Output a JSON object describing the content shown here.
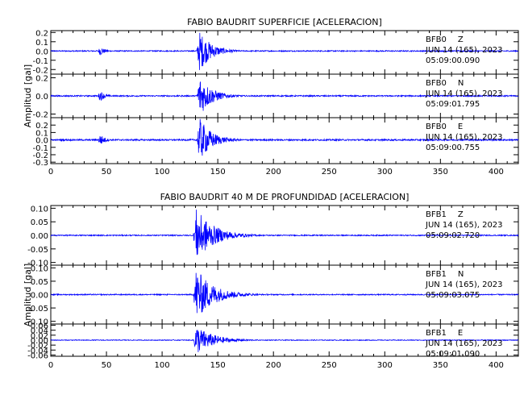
{
  "colors": {
    "trace": "#0000ff",
    "axis": "#000000",
    "background": "#ffffff"
  },
  "chart_data": [
    {
      "type": "line",
      "title": "FABIO BAUDRIT SUPERFICIE [ACELERACION]",
      "ylabel": "Amplitud [gal]",
      "xlabel": "",
      "xlim": [
        0,
        420
      ],
      "x_ticks": [
        0,
        50,
        100,
        150,
        200,
        250,
        300,
        350,
        400
      ],
      "grid": false,
      "traces": [
        {
          "station": "BFB0",
          "component": "Z",
          "date": "JUN 14 (165), 2023",
          "time": "05:09:00.090",
          "ylim": [
            -0.25,
            0.22
          ],
          "y_ticks": [
            0.2,
            0.1,
            0.0,
            -0.1,
            -0.2
          ],
          "y_tick_labels": [
            "0.2",
            "0.1",
            "0.0",
            "-0.1",
            "-0.2"
          ],
          "noise": 0.006,
          "events": [
            {
              "t0": 42,
              "t1": 60,
              "peak": 0.05
            },
            {
              "t0": 131,
              "t1": 175,
              "peak": 0.22
            }
          ]
        },
        {
          "station": "BFB0",
          "component": "N",
          "date": "JUN 14 (165), 2023",
          "time": "05:09:01.795",
          "ylim": [
            -0.24,
            0.24
          ],
          "y_ticks": [
            0.2,
            0.0,
            -0.2
          ],
          "y_tick_labels": [
            "0.2",
            "0.0",
            "-0.2"
          ],
          "noise": 0.007,
          "events": [
            {
              "t0": 42,
              "t1": 60,
              "peak": 0.06
            },
            {
              "t0": 131,
              "t1": 175,
              "peak": 0.23
            }
          ]
        },
        {
          "station": "BFB0",
          "component": "E",
          "date": "JUN 14 (165), 2023",
          "time": "05:09:00.755",
          "ylim": [
            -0.32,
            0.3
          ],
          "y_ticks": [
            0.2,
            0.1,
            0.0,
            -0.1,
            -0.2,
            -0.3
          ],
          "y_tick_labels": [
            "0.2",
            "0.1",
            "0.0",
            "-0.1",
            "-0.2",
            "-0.3"
          ],
          "noise": 0.01,
          "events": [
            {
              "t0": 42,
              "t1": 60,
              "peak": 0.08
            },
            {
              "t0": 131,
              "t1": 175,
              "peak": 0.3
            }
          ]
        }
      ]
    },
    {
      "type": "line",
      "title": "FABIO BAUDRIT 40 M DE PROFUNDIDAD [ACELERACION]",
      "ylabel": "Amplitud [gal]",
      "xlabel": "",
      "xlim": [
        0,
        420
      ],
      "x_ticks": [
        0,
        50,
        100,
        150,
        200,
        250,
        300,
        350,
        400
      ],
      "grid": false,
      "traces": [
        {
          "station": "BFB1",
          "component": "Z",
          "date": "JUN 14 (165), 2023",
          "time": "05:09:02.720",
          "ylim": [
            -0.11,
            0.11
          ],
          "y_ticks": [
            0.1,
            0.05,
            0.0,
            -0.05,
            -0.1
          ],
          "y_tick_labels": [
            "0.10",
            "0.05",
            "0.00",
            "-0.05",
            "-0.10"
          ],
          "noise": 0.002,
          "events": [
            {
              "t0": 128,
              "t1": 190,
              "peak": 0.1
            }
          ]
        },
        {
          "station": "BFB1",
          "component": "N",
          "date": "JUN 14 (165), 2023",
          "time": "05:09:03.075",
          "ylim": [
            -0.11,
            0.11
          ],
          "y_ticks": [
            0.1,
            0.05,
            0.0,
            -0.05,
            -0.1
          ],
          "y_tick_labels": [
            "0.10",
            "0.05",
            "0.00",
            "-0.05",
            "-0.10"
          ],
          "noise": 0.002,
          "events": [
            {
              "t0": 128,
              "t1": 190,
              "peak": 0.1
            }
          ]
        },
        {
          "station": "BFB1",
          "component": "E",
          "date": "JUN 14 (165), 2023",
          "time": "05:09:01.090",
          "ylim": [
            -0.065,
            0.065
          ],
          "y_ticks": [
            0.06,
            0.04,
            0.02,
            0.0,
            -0.02,
            -0.04,
            -0.06
          ],
          "y_tick_labels": [
            "0.06",
            "0.04",
            "0.02",
            "0.00",
            "-0.02",
            "-0.04",
            "-0.06"
          ],
          "noise": 0.0015,
          "events": [
            {
              "t0": 128,
              "t1": 190,
              "peak": 0.06
            }
          ]
        }
      ]
    }
  ]
}
